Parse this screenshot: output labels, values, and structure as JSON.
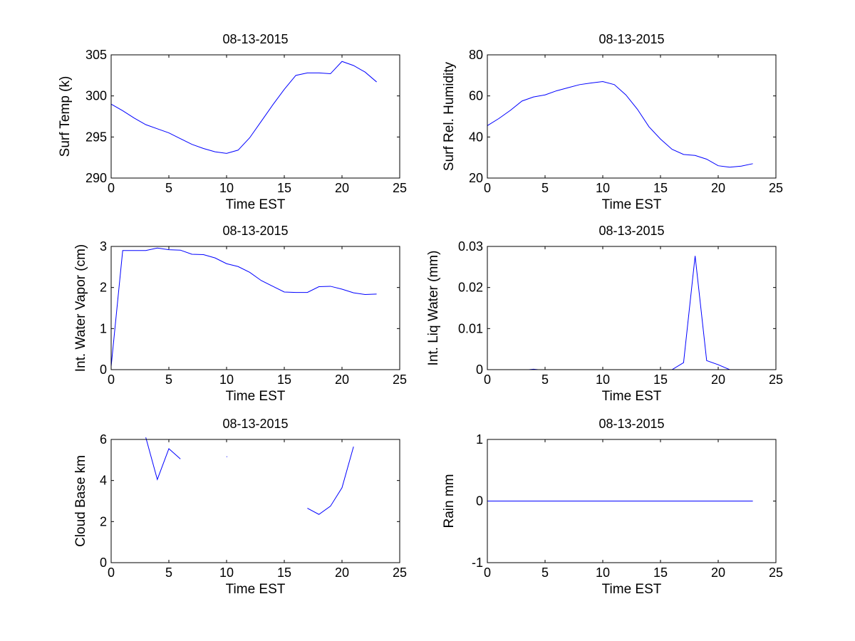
{
  "figure": {
    "background": "#ffffff",
    "line_color": "#0000ff",
    "axis_color": "#000000"
  },
  "chart_data": [
    {
      "type": "line",
      "title": "08-13-2015",
      "xlabel": "Time EST",
      "ylabel": "Surf Temp (k)",
      "xlim": [
        0,
        25
      ],
      "ylim": [
        290,
        305
      ],
      "xticks": [
        0,
        5,
        10,
        15,
        20,
        25
      ],
      "xtick_labels": [
        "0",
        "5",
        "10",
        "15",
        "20",
        "25"
      ],
      "yticks": [
        290,
        295,
        300,
        305
      ],
      "ytick_labels": [
        "290",
        "295",
        "300",
        "305"
      ],
      "series": [
        {
          "name": "Surf Temp",
          "x": [
            0,
            1,
            2,
            3,
            4,
            5,
            6,
            7,
            8,
            9,
            10,
            11,
            12,
            13,
            14,
            15,
            16,
            17,
            18,
            19,
            20,
            21,
            22,
            23
          ],
          "y": [
            299.0,
            298.2,
            297.3,
            296.5,
            296.0,
            295.5,
            294.8,
            294.1,
            293.6,
            293.2,
            293.0,
            293.4,
            294.9,
            296.9,
            298.9,
            300.8,
            302.5,
            302.8,
            302.8,
            302.7,
            304.2,
            303.7,
            302.9,
            301.7
          ]
        }
      ]
    },
    {
      "type": "line",
      "title": "08-13-2015",
      "xlabel": "Time EST",
      "ylabel": "Surf Rel. Humidity",
      "xlim": [
        0,
        25
      ],
      "ylim": [
        20,
        80
      ],
      "xticks": [
        0,
        5,
        10,
        15,
        20,
        25
      ],
      "xtick_labels": [
        "0",
        "5",
        "10",
        "15",
        "20",
        "25"
      ],
      "yticks": [
        20,
        40,
        60,
        80
      ],
      "ytick_labels": [
        "20",
        "40",
        "60",
        "80"
      ],
      "series": [
        {
          "name": "Surf Rel. Humidity",
          "x": [
            0,
            1,
            2,
            3,
            4,
            5,
            6,
            7,
            8,
            9,
            10,
            11,
            12,
            13,
            14,
            15,
            16,
            17,
            18,
            19,
            20,
            21,
            22,
            23
          ],
          "y": [
            45.5,
            49,
            53,
            57.5,
            59.5,
            60.5,
            62.5,
            64,
            65.5,
            66.3,
            67,
            65.5,
            60.5,
            53.5,
            45,
            39,
            34,
            31.5,
            31,
            29.2,
            26,
            25.3,
            25.8,
            27
          ]
        }
      ]
    },
    {
      "type": "line",
      "title": "08-13-2015",
      "xlabel": "Time EST",
      "ylabel": "Int. Water Vapor (cm)",
      "xlim": [
        0,
        25
      ],
      "ylim": [
        0,
        3
      ],
      "xticks": [
        0,
        5,
        10,
        15,
        20,
        25
      ],
      "xtick_labels": [
        "0",
        "5",
        "10",
        "15",
        "20",
        "25"
      ],
      "yticks": [
        0,
        1,
        2,
        3
      ],
      "ytick_labels": [
        "0",
        "1",
        "2",
        "3"
      ],
      "series": [
        {
          "name": "Int. Water Vapor",
          "x": [
            0,
            1,
            2,
            3,
            4,
            5,
            6,
            7,
            8,
            9,
            10,
            11,
            12,
            13,
            14,
            15,
            16,
            17,
            18,
            19,
            20,
            21,
            22,
            23
          ],
          "y": [
            0.08,
            2.9,
            2.9,
            2.9,
            2.96,
            2.92,
            2.91,
            2.81,
            2.8,
            2.72,
            2.58,
            2.51,
            2.37,
            2.17,
            2.03,
            1.89,
            1.88,
            1.88,
            2.02,
            2.03,
            1.96,
            1.87,
            1.83,
            1.84
          ]
        }
      ]
    },
    {
      "type": "line",
      "title": "08-13-2015",
      "xlabel": "Time EST",
      "ylabel": "Int. Liq Water (mm)",
      "xlim": [
        0,
        25
      ],
      "ylim": [
        0,
        0.03
      ],
      "xticks": [
        0,
        5,
        10,
        15,
        20,
        25
      ],
      "xtick_labels": [
        "0",
        "5",
        "10",
        "15",
        "20",
        "25"
      ],
      "yticks": [
        0,
        0.01,
        0.02,
        0.03
      ],
      "ytick_labels": [
        "0",
        "0.01",
        "0.02",
        "0.03"
      ],
      "series": [
        {
          "name": "Int. Liq Water",
          "x": [
            0,
            1,
            2,
            3,
            3.6,
            4,
            4.4,
            5,
            6,
            7,
            8,
            9,
            10,
            11,
            12,
            13,
            14,
            15,
            16,
            17,
            18,
            19,
            20,
            21,
            22,
            23
          ],
          "y": [
            0,
            0,
            0,
            0,
            0,
            0.0001,
            0,
            0,
            0,
            0,
            0,
            0,
            0,
            0,
            0,
            0,
            0,
            0,
            0,
            0.0017,
            0.0277,
            0.0022,
            0.0012,
            0,
            0,
            0
          ]
        }
      ]
    },
    {
      "type": "line",
      "title": "08-13-2015",
      "xlabel": "Time EST",
      "ylabel": "Cloud Base km",
      "xlim": [
        0,
        25
      ],
      "ylim": [
        0,
        6
      ],
      "xticks": [
        0,
        5,
        10,
        15,
        20,
        25
      ],
      "xtick_labels": [
        "0",
        "5",
        "10",
        "15",
        "20",
        "25"
      ],
      "yticks": [
        0,
        2,
        4,
        6
      ],
      "ytick_labels": [
        "0",
        "2",
        "4",
        "6"
      ],
      "series": [
        {
          "name": "Cloud Base",
          "x": [
            3,
            4,
            5,
            6,
            10,
            10.05,
            17,
            18,
            19,
            20,
            21
          ],
          "y": [
            6.1,
            4.05,
            5.55,
            5.05,
            5.17,
            5.15,
            2.65,
            2.35,
            2.75,
            3.65,
            5.65
          ],
          "breaks_before": [
            4,
            6
          ]
        }
      ]
    },
    {
      "type": "line",
      "title": "08-13-2015",
      "xlabel": "Time EST",
      "ylabel": "Rain mm",
      "xlim": [
        0,
        25
      ],
      "ylim": [
        -1,
        1
      ],
      "xticks": [
        0,
        5,
        10,
        15,
        20,
        25
      ],
      "xtick_labels": [
        "0",
        "5",
        "10",
        "15",
        "20",
        "25"
      ],
      "yticks": [
        -1,
        0,
        1
      ],
      "ytick_labels": [
        "-1",
        "0",
        "1"
      ],
      "series": [
        {
          "name": "Rain",
          "x": [
            0,
            23
          ],
          "y": [
            0,
            0
          ]
        }
      ]
    }
  ]
}
